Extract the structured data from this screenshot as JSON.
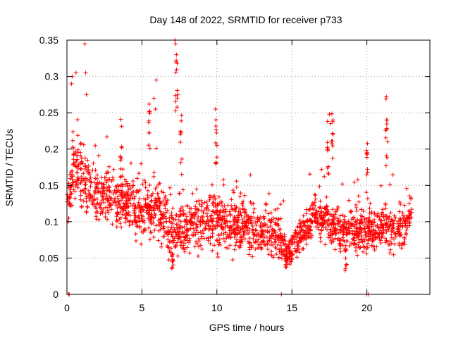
{
  "chart_data": {
    "type": "scatter",
    "title": "Day 148 of 2022, SRMTID for receiver p733",
    "xlabel": "GPS time / hours",
    "ylabel": "SRMTID / TECUs",
    "xlim": [
      0,
      24.2
    ],
    "ylim": [
      0,
      0.35
    ],
    "xticks": [
      0,
      5,
      10,
      15,
      20
    ],
    "xtick_labels": [
      "0",
      "5",
      "10",
      "15",
      "20"
    ],
    "yticks": [
      0,
      0.05,
      0.1,
      0.15,
      0.2,
      0.25,
      0.3,
      0.35
    ],
    "ytick_labels": [
      "0",
      "0.05",
      "0.1",
      "0.15",
      "0.2",
      "0.25",
      "0.3",
      "0.35"
    ],
    "grid": true,
    "marker": "+",
    "color": "#ff0000",
    "series": [
      {
        "name": "SRMTID",
        "x_range": [
          0,
          23
        ],
        "envelope": [
          {
            "x": 0.0,
            "mid": 0.12,
            "spread": 0.03
          },
          {
            "x": 0.5,
            "mid": 0.17,
            "spread": 0.06
          },
          {
            "x": 1.0,
            "mid": 0.16,
            "spread": 0.05
          },
          {
            "x": 2.0,
            "mid": 0.135,
            "spread": 0.05
          },
          {
            "x": 3.0,
            "mid": 0.13,
            "spread": 0.05
          },
          {
            "x": 4.0,
            "mid": 0.125,
            "spread": 0.05
          },
          {
            "x": 5.0,
            "mid": 0.11,
            "spread": 0.045
          },
          {
            "x": 6.0,
            "mid": 0.12,
            "spread": 0.05
          },
          {
            "x": 7.0,
            "mid": 0.08,
            "spread": 0.045
          },
          {
            "x": 8.0,
            "mid": 0.09,
            "spread": 0.045
          },
          {
            "x": 9.0,
            "mid": 0.095,
            "spread": 0.045
          },
          {
            "x": 10.0,
            "mid": 0.1,
            "spread": 0.045
          },
          {
            "x": 11.0,
            "mid": 0.095,
            "spread": 0.045
          },
          {
            "x": 12.0,
            "mid": 0.09,
            "spread": 0.045
          },
          {
            "x": 13.0,
            "mid": 0.085,
            "spread": 0.04
          },
          {
            "x": 14.0,
            "mid": 0.08,
            "spread": 0.04
          },
          {
            "x": 14.8,
            "mid": 0.055,
            "spread": 0.025
          },
          {
            "x": 15.5,
            "mid": 0.08,
            "spread": 0.03
          },
          {
            "x": 16.5,
            "mid": 0.105,
            "spread": 0.035
          },
          {
            "x": 17.5,
            "mid": 0.1,
            "spread": 0.04
          },
          {
            "x": 18.5,
            "mid": 0.08,
            "spread": 0.035
          },
          {
            "x": 19.5,
            "mid": 0.09,
            "spread": 0.04
          },
          {
            "x": 20.5,
            "mid": 0.085,
            "spread": 0.035
          },
          {
            "x": 21.5,
            "mid": 0.095,
            "spread": 0.04
          },
          {
            "x": 22.5,
            "mid": 0.09,
            "spread": 0.04
          },
          {
            "x": 23.0,
            "mid": 0.115,
            "spread": 0.03
          }
        ],
        "notable_points": [
          [
            0.1,
            0.0
          ],
          [
            0.15,
            0.0
          ],
          [
            0.3,
            0.29
          ],
          [
            0.35,
            0.3
          ],
          [
            0.6,
            0.305
          ],
          [
            1.2,
            0.345
          ],
          [
            1.25,
            0.305
          ],
          [
            1.3,
            0.275
          ],
          [
            5.8,
            0.27
          ],
          [
            5.9,
            0.255
          ],
          [
            5.95,
            0.295
          ],
          [
            7.2,
            0.35
          ],
          [
            7.25,
            0.345
          ],
          [
            7.3,
            0.33
          ],
          [
            7.35,
            0.318
          ],
          [
            7.4,
            0.275
          ],
          [
            9.9,
            0.255
          ],
          [
            14.3,
            0.0
          ],
          [
            17.5,
            0.248
          ],
          [
            17.6,
            0.235
          ],
          [
            20.0,
            0.0
          ],
          [
            20.1,
            0.0
          ],
          [
            21.3,
            0.272
          ],
          [
            21.35,
            0.24
          ],
          [
            21.4,
            0.21
          ]
        ]
      }
    ]
  }
}
